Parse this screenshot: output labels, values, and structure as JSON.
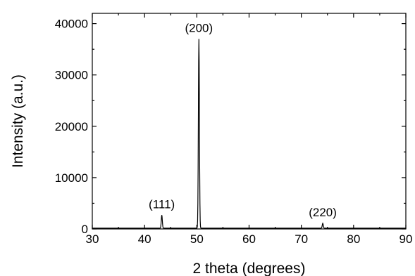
{
  "chart_data": {
    "type": "line",
    "xlabel": "2 theta (degrees)",
    "ylabel": "Intensity (a.u.)",
    "xlim": [
      30,
      90
    ],
    "ylim": [
      0,
      42000
    ],
    "x_ticks": [
      30,
      40,
      50,
      60,
      70,
      80,
      90
    ],
    "y_ticks": [
      0,
      10000,
      20000,
      30000,
      40000
    ],
    "grid": false,
    "series": [
      {
        "color": "#000000",
        "peaks": [
          {
            "x": 43.3,
            "y": 2700,
            "label": "(111)"
          },
          {
            "x": 50.4,
            "y": 37000,
            "label": "(200)"
          },
          {
            "x": 74.1,
            "y": 1100,
            "label": "(220)"
          }
        ],
        "baseline": 150
      }
    ],
    "annotations": [
      {
        "text": "(111)",
        "x": 43.3,
        "y": 2700
      },
      {
        "text": "(200)",
        "x": 50.4,
        "y": 37000
      },
      {
        "text": "(220)",
        "x": 74.1,
        "y": 1100
      }
    ]
  }
}
